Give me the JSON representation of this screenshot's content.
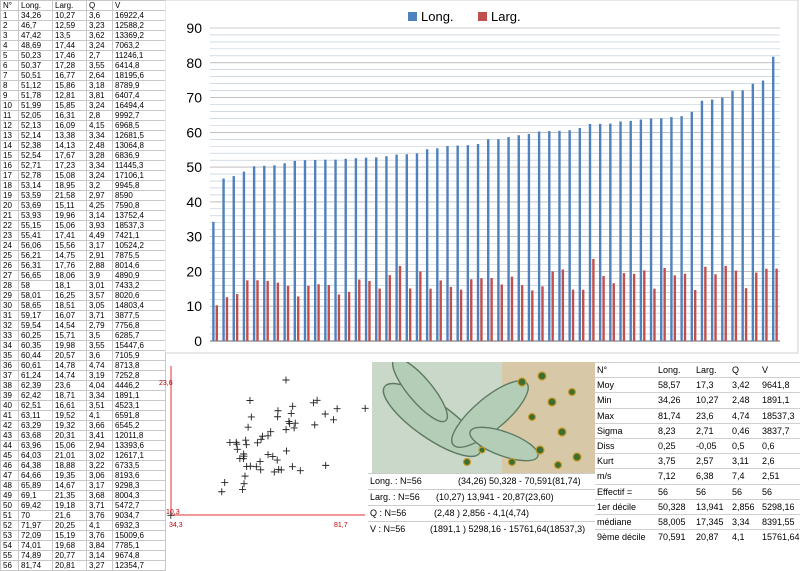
{
  "table": {
    "headers": [
      "N°",
      "Long.",
      "Larg.",
      "Q",
      "V"
    ],
    "rows": [
      [
        "1",
        "34,26",
        "10,27",
        "3,6",
        "16922,4"
      ],
      [
        "2",
        "46,7",
        "12,59",
        "3,23",
        "12588,2"
      ],
      [
        "3",
        "47,42",
        "13,5",
        "3,62",
        "13369,2"
      ],
      [
        "4",
        "48,69",
        "17,44",
        "3,24",
        "7063,2"
      ],
      [
        "5",
        "50,23",
        "17,46",
        "2,7",
        "11246,1"
      ],
      [
        "6",
        "50,37",
        "17,28",
        "3,55",
        "6414,8"
      ],
      [
        "7",
        "50,51",
        "16,77",
        "2,64",
        "18195,6"
      ],
      [
        "8",
        "51,12",
        "15,86",
        "3,18",
        "8789,9"
      ],
      [
        "9",
        "51,78",
        "12,81",
        "3,81",
        "6407,4"
      ],
      [
        "10",
        "51,99",
        "15,85",
        "3,24",
        "16494,4"
      ],
      [
        "11",
        "52,05",
        "16,31",
        "2,8",
        "9992,7"
      ],
      [
        "12",
        "52,13",
        "16,09",
        "4,15",
        "6968,5"
      ],
      [
        "13",
        "52,14",
        "13,38",
        "3,34",
        "12681,5"
      ],
      [
        "14",
        "52,38",
        "14,13",
        "2,48",
        "13064,8"
      ],
      [
        "15",
        "52,54",
        "17,67",
        "3,28",
        "6836,9"
      ],
      [
        "16",
        "52,71",
        "17,23",
        "3,34",
        "11445,3"
      ],
      [
        "17",
        "52,78",
        "15,08",
        "3,24",
        "17106,1"
      ],
      [
        "18",
        "53,14",
        "18,95",
        "3,2",
        "9945,8"
      ],
      [
        "19",
        "53,59",
        "21,58",
        "2,97",
        "8590"
      ],
      [
        "20",
        "53,69",
        "15,11",
        "4,25",
        "7590,8"
      ],
      [
        "21",
        "53,93",
        "19,96",
        "3,14",
        "13752,4"
      ],
      [
        "22",
        "55,15",
        "15,06",
        "3,93",
        "18537,3"
      ],
      [
        "23",
        "55,41",
        "17,41",
        "4,49",
        "7421,1"
      ],
      [
        "24",
        "56,06",
        "15,56",
        "3,17",
        "10524,2"
      ],
      [
        "25",
        "56,21",
        "14,75",
        "2,91",
        "7875,5"
      ],
      [
        "26",
        "56,31",
        "17,76",
        "2,88",
        "8014,6"
      ],
      [
        "27",
        "56,65",
        "18,06",
        "3,9",
        "4890,9"
      ],
      [
        "28",
        "58",
        "18,1",
        "3,01",
        "7433,2"
      ],
      [
        "29",
        "58,01",
        "16,25",
        "3,57",
        "8020,6"
      ],
      [
        "30",
        "58,65",
        "18,51",
        "3,05",
        "14803,4"
      ],
      [
        "31",
        "59,17",
        "16,07",
        "3,71",
        "3877,5"
      ],
      [
        "32",
        "59,54",
        "14,54",
        "2,79",
        "7756,8"
      ],
      [
        "33",
        "60,25",
        "15,71",
        "3,5",
        "6285,7"
      ],
      [
        "34",
        "60,35",
        "19,98",
        "3,55",
        "15447,6"
      ],
      [
        "35",
        "60,44",
        "20,57",
        "3,6",
        "7105,9"
      ],
      [
        "36",
        "60,61",
        "14,78",
        "4,74",
        "8713,8"
      ],
      [
        "37",
        "61,24",
        "14,74",
        "3,19",
        "7252,8"
      ],
      [
        "38",
        "62,39",
        "23,6",
        "4,04",
        "4446,2"
      ],
      [
        "39",
        "62,42",
        "18,71",
        "3,34",
        "1891,1"
      ],
      [
        "40",
        "62,51",
        "16,61",
        "3,51",
        "4523,1"
      ],
      [
        "41",
        "63,11",
        "19,52",
        "4,1",
        "6591,8"
      ],
      [
        "42",
        "63,29",
        "19,32",
        "3,66",
        "6545,2"
      ],
      [
        "43",
        "63,68",
        "20,31",
        "3,41",
        "12011,8"
      ],
      [
        "44",
        "63,96",
        "15,06",
        "2,94",
        "13393,6"
      ],
      [
        "45",
        "64,03",
        "21,01",
        "3,02",
        "12617,1"
      ],
      [
        "46",
        "64,38",
        "18,88",
        "3,22",
        "6733,5"
      ],
      [
        "47",
        "64,66",
        "19,35",
        "3,06",
        "8193,6"
      ],
      [
        "48",
        "65,89",
        "14,67",
        "3,17",
        "9298,3"
      ],
      [
        "49",
        "69,1",
        "21,35",
        "3,68",
        "8004,3"
      ],
      [
        "50",
        "69,42",
        "19,18",
        "3,71",
        "5472,7"
      ],
      [
        "51",
        "70",
        "21,6",
        "3,76",
        "9034,7"
      ],
      [
        "52",
        "71,97",
        "20,25",
        "4,1",
        "6932,3"
      ],
      [
        "53",
        "72,09",
        "15,19",
        "3,76",
        "15009,6"
      ],
      [
        "54",
        "74,01",
        "19,68",
        "3,84",
        "7785,1"
      ],
      [
        "55",
        "74,89",
        "20,77",
        "3,14",
        "9674,8"
      ],
      [
        "56",
        "81,74",
        "20,81",
        "3,27",
        "12354,7"
      ]
    ]
  },
  "chart_data": [
    {
      "type": "bar",
      "legend": [
        "Long.",
        "Larg."
      ],
      "legend_position": "top",
      "colors": {
        "Long.": "#4f81bd",
        "Larg.": "#c0504d"
      },
      "ylim": [
        0,
        90
      ],
      "yticks": [
        "0",
        "10",
        "20",
        "30",
        "40",
        "50",
        "60",
        "70",
        "80",
        "90"
      ],
      "grid": true,
      "series": [
        {
          "name": "Long.",
          "values": [
            34.26,
            46.7,
            47.42,
            48.69,
            50.23,
            50.37,
            50.51,
            51.12,
            51.78,
            51.99,
            52.05,
            52.13,
            52.14,
            52.38,
            52.54,
            52.71,
            52.78,
            53.14,
            53.59,
            53.69,
            53.93,
            55.15,
            55.41,
            56.06,
            56.21,
            56.31,
            56.65,
            58,
            58.01,
            58.65,
            59.17,
            59.54,
            60.25,
            60.35,
            60.44,
            60.61,
            61.24,
            62.39,
            62.42,
            62.51,
            63.11,
            63.29,
            63.68,
            63.96,
            64.03,
            64.38,
            64.66,
            65.89,
            69.1,
            69.42,
            70,
            71.97,
            72.09,
            74.01,
            74.89,
            81.74
          ]
        },
        {
          "name": "Larg.",
          "values": [
            10.27,
            12.59,
            13.5,
            17.44,
            17.46,
            17.28,
            16.77,
            15.86,
            12.81,
            15.85,
            16.31,
            16.09,
            13.38,
            14.13,
            17.67,
            17.23,
            15.08,
            18.95,
            21.58,
            15.11,
            19.96,
            15.06,
            17.41,
            15.56,
            14.75,
            17.76,
            18.06,
            18.1,
            16.25,
            18.51,
            16.07,
            14.54,
            15.71,
            19.98,
            20.57,
            14.78,
            14.74,
            23.6,
            18.71,
            16.61,
            19.52,
            19.32,
            20.31,
            15.06,
            21.01,
            18.88,
            19.35,
            14.67,
            21.35,
            19.18,
            21.6,
            20.25,
            15.19,
            19.68,
            20.77,
            20.81
          ]
        }
      ]
    },
    {
      "type": "scatter",
      "x_axis_labels": [
        "34,3",
        "81,7"
      ],
      "y_axis_labels": [
        "23,6",
        "10,3"
      ],
      "xlim": [
        34.3,
        81.7
      ],
      "ylim": [
        10.3,
        23.6
      ],
      "marker": "+"
    }
  ],
  "summary": {
    "long_label": "Long. : N=56",
    "long_value": "(34,26) 50,328 - 70,591(81,74)",
    "larg_label": "Larg. : N=56",
    "larg_value": "(10,27) 13,941 - 20,87(23,60)",
    "q_label": "Q : N=56",
    "q_value": "(2,48 ) 2,856 - 4,1(4,74)",
    "v_label": "V : N=56",
    "v_value": "(1891,1 ) 5298,16 - 15761,64(18537,3)"
  },
  "stats": {
    "headers": [
      "N°",
      "Long.",
      "Larg.",
      "Q",
      "V"
    ],
    "rows": [
      [
        "Moy",
        "58,57",
        "17,3",
        "3,42",
        "9641,8"
      ],
      [
        "Min",
        "34,26",
        "10,27",
        "2,48",
        "1891,1"
      ],
      [
        "Max",
        "81,74",
        "23,6",
        "4,74",
        "18537,3"
      ],
      [
        "Sigma",
        "8,23",
        "2,71",
        "0,46",
        "3837,7"
      ],
      [
        "Diss",
        "0,25",
        "-0,05",
        "0,5",
        "0,6"
      ],
      [
        "Kurt",
        "3,75",
        "2,57",
        "3,11",
        "2,6"
      ],
      [
        "m/s",
        "7,12",
        "6,38",
        "7,4",
        "2,51"
      ],
      [
        "Effectif =",
        "56",
        "56",
        "56",
        "56"
      ],
      [
        "1er décile",
        "50,328",
        "13,941",
        "2,856",
        "5298,16"
      ],
      [
        "médiane",
        "58,005",
        "17,345",
        "3,34",
        "8391,55"
      ],
      [
        "9ème décile",
        "70,591",
        "20,87",
        "4,1",
        "15761,64"
      ]
    ]
  }
}
